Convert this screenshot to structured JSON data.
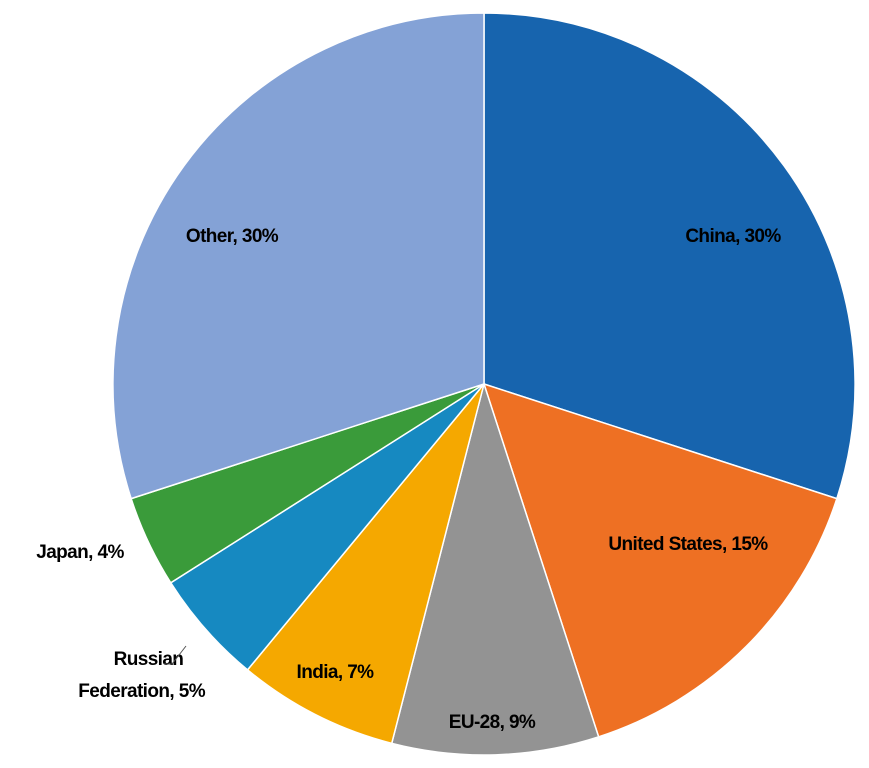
{
  "chart_data": {
    "type": "pie",
    "values": [
      30,
      15,
      9,
      7,
      5,
      4,
      30
    ],
    "value_labels": [
      "China, 30%",
      "United States, 15%",
      "EU-28, 9%",
      "India, 7%",
      "Russian Federation, 5%",
      "Japan, 4%",
      "Other, 30%"
    ],
    "colors": [
      "#1764ae",
      "#ee7023",
      "#939393",
      "#f5a800",
      "#1689c1",
      "#3a9b3a",
      "#84a2d6"
    ]
  }
}
